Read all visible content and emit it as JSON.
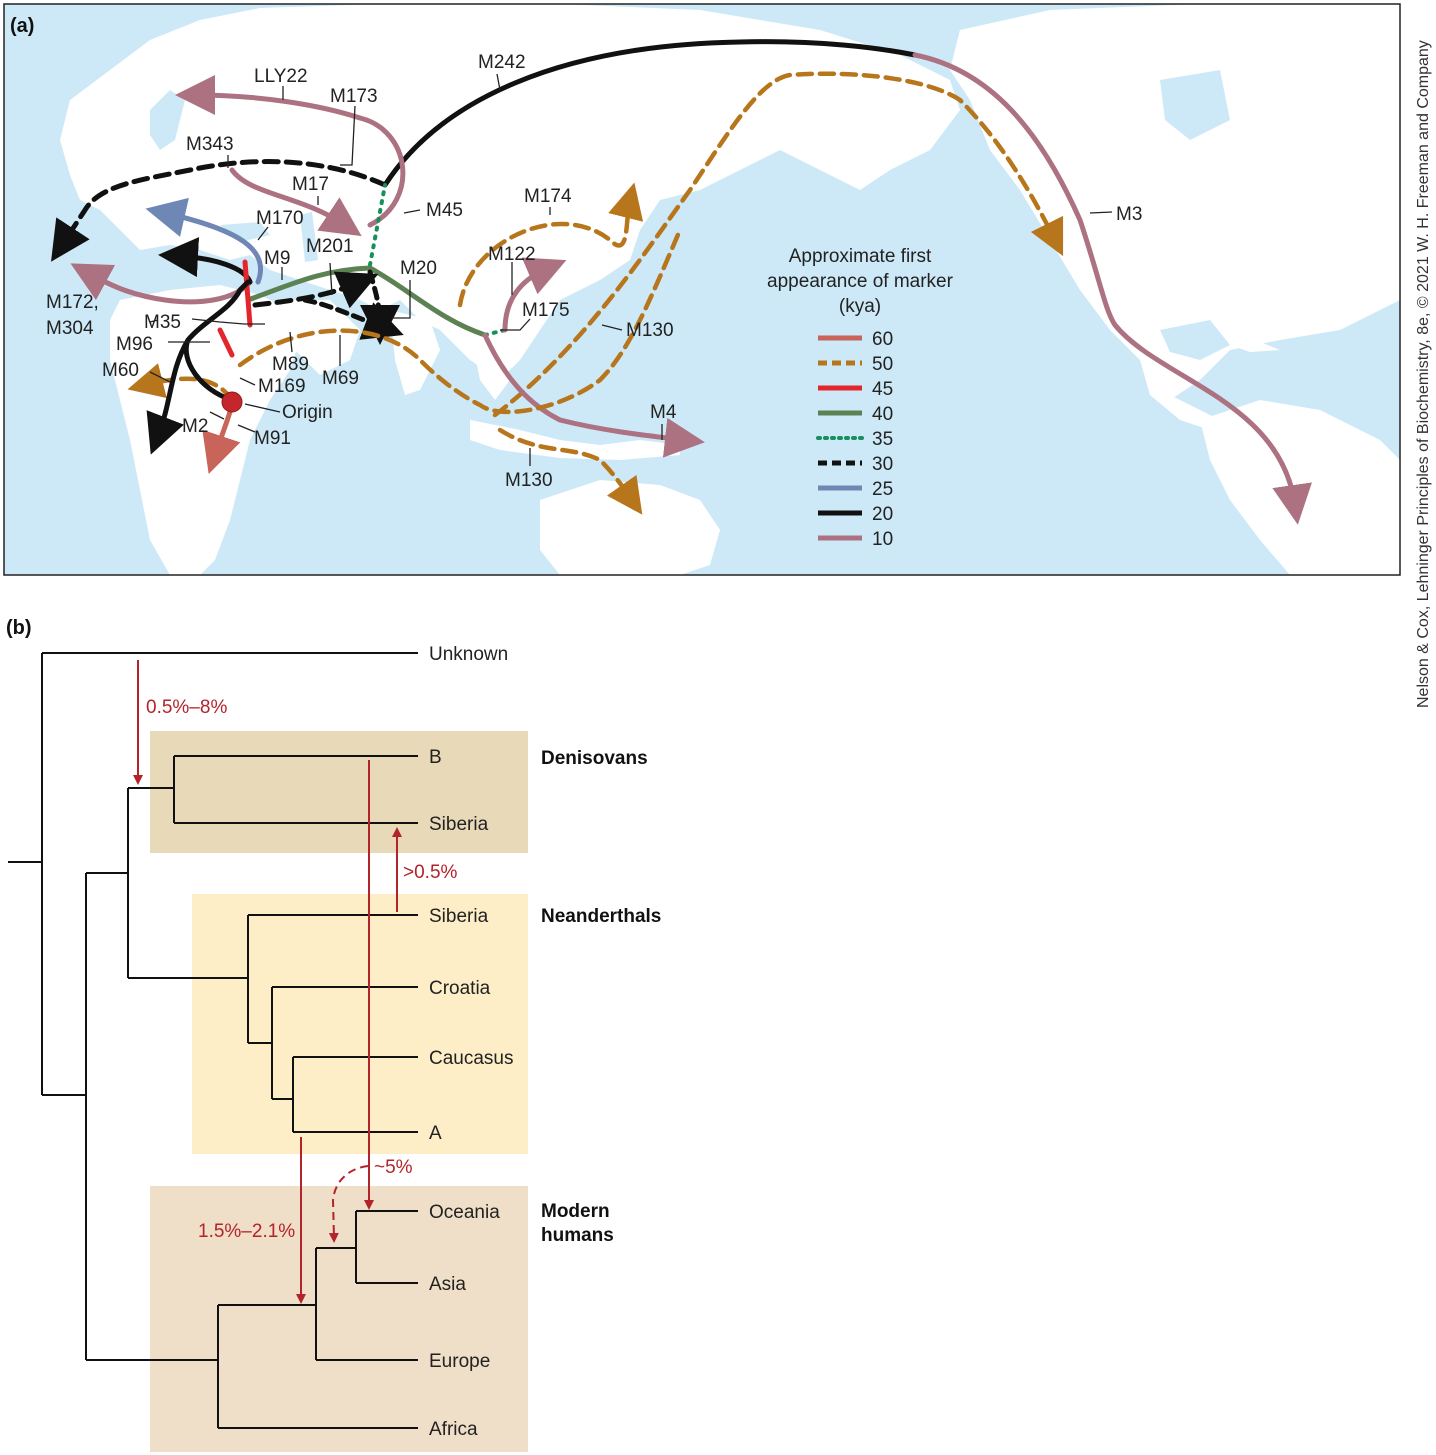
{
  "panel_a": {
    "label": "(a)",
    "legend": {
      "title_line1": "Approximate first",
      "title_line2": "appearance of marker",
      "title_line3": "(kya)",
      "entries": [
        {
          "value": "60",
          "color": "#c9645a",
          "style": "solid"
        },
        {
          "value": "50",
          "color": "#b8761c",
          "style": "dashed"
        },
        {
          "value": "45",
          "color": "#e3262b",
          "style": "solid"
        },
        {
          "value": "40",
          "color": "#5c8254",
          "style": "solid"
        },
        {
          "value": "35",
          "color": "#16915a",
          "style": "dotted"
        },
        {
          "value": "30",
          "color": "#111111",
          "style": "dashed"
        },
        {
          "value": "25",
          "color": "#6f87b5",
          "style": "solid"
        },
        {
          "value": "20",
          "color": "#111111",
          "style": "solid"
        },
        {
          "value": "10",
          "color": "#ad7282",
          "style": "solid"
        }
      ]
    },
    "markers": {
      "lly22": "LLY22",
      "m173": "M173",
      "m242": "M242",
      "m343": "M343",
      "m17": "M17",
      "m170": "M170",
      "m45": "M45",
      "m174": "M174",
      "m3": "M3",
      "m9": "M9",
      "m201": "M201",
      "m20": "M20",
      "m122": "M122",
      "m172_l1": "M172,",
      "m172_l2": "M304",
      "m35": "M35",
      "m175": "M175",
      "m130a": "M130",
      "m96": "M96",
      "m89": "M89",
      "m60": "M60",
      "m169": "M169",
      "m69": "M69",
      "origin": "Origin",
      "m4": "M4",
      "m2": "M2",
      "m91": "M91",
      "m130b": "M130"
    }
  },
  "panel_b": {
    "label": "(b)",
    "leaves": {
      "unknown": "Unknown",
      "b": "B",
      "den_siberia": "Siberia",
      "nea_siberia": "Siberia",
      "croatia": "Croatia",
      "caucasus": "Caucasus",
      "a": "A",
      "oceania": "Oceania",
      "asia": "Asia",
      "europe": "Europe",
      "africa": "Africa"
    },
    "groups": {
      "denisovans": "Denisovans",
      "neanderthals": "Neanderthals",
      "modern_l1": "Modern",
      "modern_l2": "humans"
    },
    "gene_flow": {
      "unknown_to_denisovan": "0.5%–8%",
      "neanderthal_to_denisovan": ">0.5%",
      "denisovan_to_oceania": "~5%",
      "neanderthal_to_modern": "1.5%–2.1%"
    }
  },
  "credit": "Nelson & Cox, Lehninger Principles of Biochemistry, 8e, © 2021 W. H. Freeman and Company"
}
